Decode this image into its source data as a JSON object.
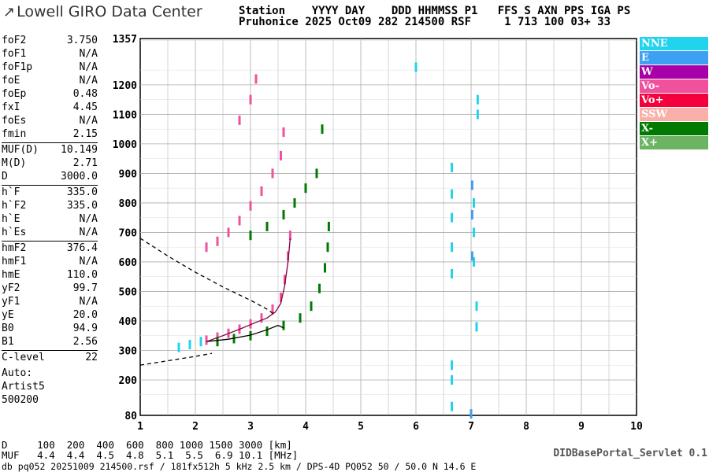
{
  "header": {
    "logo_mark": "↗",
    "logo_text": "Lowell GIRO Data Center",
    "line1": "Station    YYYY DAY    DDD HHMMSS P1   FFS S AXN PPS IGA PS",
    "line2": "Pruhonice 2025 Oct09 282 214500 RSF     1 713 100 03+ 33"
  },
  "params": [
    {
      "name": "foF2",
      "value": "3.750"
    },
    {
      "name": "foF1",
      "value": "N/A"
    },
    {
      "name": "foF1p",
      "value": "N/A"
    },
    {
      "name": "foE",
      "value": "N/A"
    },
    {
      "name": "foEp",
      "value": "0.48"
    },
    {
      "name": "fxI",
      "value": "4.45"
    },
    {
      "name": "foEs",
      "value": "N/A"
    },
    {
      "name": "fmin",
      "value": "2.15"
    },
    {
      "name": "MUF(D)",
      "value": "10.149"
    },
    {
      "name": "M(D)",
      "value": "2.71"
    },
    {
      "name": "D",
      "value": "3000.0"
    },
    {
      "name": "h`F",
      "value": "335.0"
    },
    {
      "name": "h`F2",
      "value": "335.0"
    },
    {
      "name": "h`E",
      "value": "N/A"
    },
    {
      "name": "h`Es",
      "value": "N/A"
    },
    {
      "name": "hmF2",
      "value": "376.4"
    },
    {
      "name": "hmF1",
      "value": "N/A"
    },
    {
      "name": "hmE",
      "value": "110.0"
    },
    {
      "name": "yF2",
      "value": "99.7"
    },
    {
      "name": "yF1",
      "value": "N/A"
    },
    {
      "name": "yE",
      "value": "20.0"
    },
    {
      "name": "B0",
      "value": "94.9"
    },
    {
      "name": "B1",
      "value": "2.56"
    },
    {
      "name": "C-level",
      "value": "22"
    }
  ],
  "auto": {
    "line1": "Auto:",
    "line2": "Artist5",
    "line3": "500200"
  },
  "legend": [
    {
      "label": "NNE",
      "color": "#22d3ee"
    },
    {
      "label": "E",
      "color": "#3ea0f0"
    },
    {
      "label": "W",
      "color": "#a800a8"
    },
    {
      "label": "Vo-",
      "color": "#f0509c"
    },
    {
      "label": "Vo+",
      "color": "#f4003c"
    },
    {
      "label": "SSW",
      "color": "#f8b0a8"
    },
    {
      "label": "X-",
      "color": "#007a00"
    },
    {
      "label": "X+",
      "color": "#6cb464"
    }
  ],
  "bottom": {
    "d_row": "D     100  200  400  600  800 1000 1500 3000 [km]",
    "muf_row": "MUF   4.4  4.4  4.5  4.8  5.1  5.5  6.9 10.1 [MHz]",
    "footer": "db pq052 20251009 214500.rsf / 181fx512h 5 kHz 2.5 km / DPS-4D PQ052 50 / 50.0 N 14.6 E",
    "servlet": "DIDBasePortal_Servlet 0.1"
  },
  "chart_data": {
    "type": "scatter",
    "title": "",
    "xlabel": "",
    "ylabel": "",
    "xlim": [
      1,
      10
    ],
    "ylim": [
      80,
      1357
    ],
    "x_ticks": [
      "1",
      "2",
      "3",
      "4",
      "5",
      "6",
      "7",
      "8",
      "9",
      "10"
    ],
    "y_ticks": [
      "80",
      "200",
      "300",
      "400",
      "500",
      "600",
      "700",
      "800",
      "900",
      "1000",
      "1100",
      "1200",
      "1357"
    ],
    "grid": true,
    "series": [
      {
        "name": "Vo-",
        "color": "#f0509c",
        "points": [
          [
            2.2,
            335
          ],
          [
            2.4,
            345
          ],
          [
            2.6,
            358
          ],
          [
            2.8,
            372
          ],
          [
            3.0,
            390
          ],
          [
            3.2,
            410
          ],
          [
            3.4,
            440
          ],
          [
            3.55,
            480
          ],
          [
            3.62,
            540
          ],
          [
            3.68,
            620
          ],
          [
            3.72,
            690
          ],
          [
            2.2,
            650
          ],
          [
            2.4,
            670
          ],
          [
            2.6,
            700
          ],
          [
            2.8,
            740
          ],
          [
            3.0,
            790
          ],
          [
            3.2,
            840
          ],
          [
            3.4,
            900
          ],
          [
            3.55,
            960
          ],
          [
            3.6,
            1040
          ],
          [
            2.8,
            1080
          ],
          [
            3.0,
            1150
          ],
          [
            3.1,
            1220
          ]
        ]
      },
      {
        "name": "X-",
        "color": "#007a00",
        "points": [
          [
            2.4,
            330
          ],
          [
            2.7,
            340
          ],
          [
            3.0,
            350
          ],
          [
            3.3,
            365
          ],
          [
            3.6,
            385
          ],
          [
            3.9,
            410
          ],
          [
            4.1,
            450
          ],
          [
            4.25,
            510
          ],
          [
            4.35,
            580
          ],
          [
            4.4,
            650
          ],
          [
            4.42,
            720
          ],
          [
            3.0,
            690
          ],
          [
            3.3,
            720
          ],
          [
            3.6,
            760
          ],
          [
            3.8,
            800
          ],
          [
            4.0,
            850
          ],
          [
            4.2,
            900
          ],
          [
            4.3,
            1050
          ]
        ]
      },
      {
        "name": "NNE",
        "color": "#22d3ee",
        "points": [
          [
            1.7,
            310
          ],
          [
            1.9,
            320
          ],
          [
            2.1,
            330
          ],
          [
            6.65,
            560
          ],
          [
            6.65,
            650
          ],
          [
            6.65,
            750
          ],
          [
            6.65,
            830
          ],
          [
            6.65,
            920
          ],
          [
            6.65,
            250
          ],
          [
            6.65,
            200
          ],
          [
            6.65,
            110
          ],
          [
            7.05,
            600
          ],
          [
            7.05,
            700
          ],
          [
            7.05,
            800
          ],
          [
            7.1,
            380
          ],
          [
            7.1,
            450
          ],
          [
            7.12,
            1150
          ],
          [
            7.12,
            1100
          ],
          [
            6.0,
            1260
          ]
        ]
      },
      {
        "name": "E",
        "color": "#3ea0f0",
        "points": [
          [
            7.02,
            620
          ],
          [
            7.02,
            760
          ],
          [
            7.02,
            860
          ],
          [
            7.0,
            85
          ]
        ]
      }
    ],
    "curves": [
      {
        "name": "profile",
        "style": "solid",
        "points": [
          [
            2.2,
            330
          ],
          [
            2.6,
            338
          ],
          [
            3.0,
            352
          ],
          [
            3.3,
            370
          ],
          [
            3.5,
            385
          ],
          [
            3.6,
            376.4
          ]
        ]
      },
      {
        "name": "virtual height",
        "style": "solid",
        "points": [
          [
            2.2,
            330
          ],
          [
            2.5,
            350
          ],
          [
            2.8,
            372
          ],
          [
            3.1,
            395
          ],
          [
            3.3,
            410
          ],
          [
            3.45,
            430
          ],
          [
            3.55,
            460
          ],
          [
            3.62,
            520
          ],
          [
            3.68,
            600
          ],
          [
            3.72,
            680
          ]
        ]
      },
      {
        "name": "MUF",
        "style": "dashed",
        "points": [
          [
            1,
            680
          ],
          [
            1.5,
            620
          ],
          [
            2,
            565
          ],
          [
            2.5,
            515
          ],
          [
            3,
            470
          ],
          [
            3.3,
            440
          ],
          [
            3.45,
            420
          ]
        ]
      },
      {
        "name": "MUF-low",
        "style": "dashed",
        "points": [
          [
            1,
            250
          ],
          [
            1.5,
            265
          ],
          [
            2,
            280
          ],
          [
            2.3,
            290
          ]
        ]
      }
    ]
  }
}
